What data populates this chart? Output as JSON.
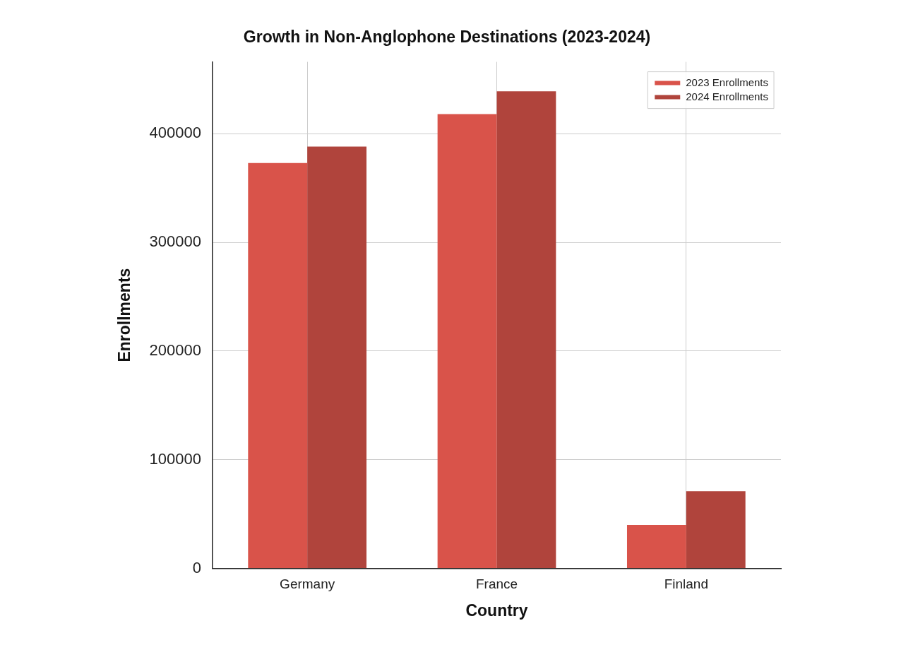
{
  "chart_data": {
    "type": "bar",
    "title": "Growth in Non-Anglophone Destinations (2023-2024)",
    "xlabel": "Country",
    "ylabel": "Enrollments",
    "categories": [
      "Germany",
      "France",
      "Finland"
    ],
    "series": [
      {
        "name": "2023 Enrollments",
        "color": "#d9534a",
        "values": [
          373000,
          418000,
          40000
        ]
      },
      {
        "name": "2024 Enrollments",
        "color": "#b0443c",
        "values": [
          388000,
          439000,
          71000
        ]
      }
    ],
    "ylim": [
      0,
      466000
    ],
    "yticks": [
      0,
      100000,
      200000,
      300000,
      400000
    ],
    "grid": true,
    "legend": "top right"
  }
}
